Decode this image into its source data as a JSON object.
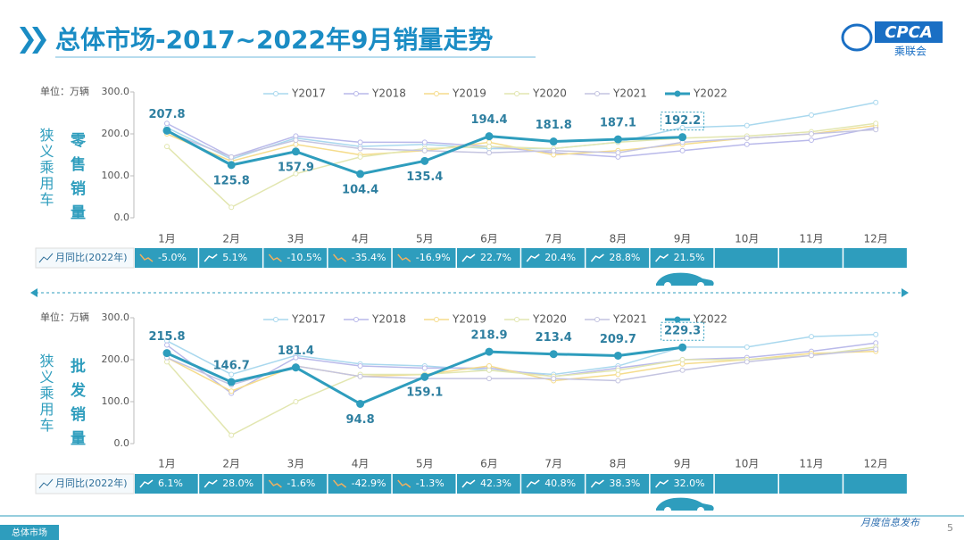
{
  "header": {
    "title": "总体市场-2017~2022年9月销量走势",
    "logo": "CPCA",
    "logo_sub": "乘联会"
  },
  "footer": {
    "tabs": [
      "总体市场"
    ],
    "note": "月度信息发布",
    "page": "5"
  },
  "chart_data": [
    {
      "type": "line",
      "y_label": "单位：万辆",
      "side_label": "狭义乘用车",
      "metric_label": "零售销量",
      "categories": [
        "1月",
        "2月",
        "3月",
        "4月",
        "5月",
        "6月",
        "7月",
        "8月",
        "9月",
        "10月",
        "11月",
        "12月"
      ],
      "ylim": [
        0,
        300
      ],
      "yticks": [
        {
          "value": 0,
          "label": "0.0"
        },
        {
          "value": 100,
          "label": "100.0"
        },
        {
          "value": 200,
          "label": "200.0"
        },
        {
          "value": 300,
          "label": "300.0"
        }
      ],
      "series": [
        {
          "name": "Y2017",
          "color": "#a9d8ee",
          "values": [
            215,
            140,
            190,
            170,
            175,
            165,
            165,
            180,
            215,
            220,
            245,
            275
          ]
        },
        {
          "name": "Y2018",
          "color": "#b9b9ea",
          "values": [
            225,
            145,
            195,
            180,
            180,
            170,
            155,
            145,
            160,
            175,
            185,
            215
          ]
        },
        {
          "name": "Y2019",
          "color": "#f5dc8c",
          "values": [
            200,
            135,
            175,
            150,
            160,
            180,
            150,
            160,
            175,
            190,
            200,
            220
          ]
        },
        {
          "name": "Y2020",
          "color": "#e2e6b0",
          "values": [
            170,
            25,
            105,
            145,
            165,
            170,
            165,
            180,
            190,
            195,
            205,
            225
          ]
        },
        {
          "name": "Y2021",
          "color": "#c4c4e0",
          "values": [
            205,
            145,
            185,
            165,
            160,
            155,
            160,
            155,
            180,
            190,
            200,
            210
          ]
        },
        {
          "name": "Y2022",
          "color": "#2e9dbd",
          "values": [
            207.8,
            125.8,
            157.9,
            104.4,
            135.4,
            194.4,
            181.8,
            187.1,
            192.2,
            null,
            null,
            null
          ]
        }
      ],
      "yoy": {
        "label": "月同比(2022年)",
        "values": [
          "-5.0%",
          "5.1%",
          "-10.5%",
          "-35.4%",
          "-16.9%",
          "22.7%",
          "20.4%",
          "28.8%",
          "21.5%"
        ]
      }
    },
    {
      "type": "line",
      "y_label": "单位：万辆",
      "side_label": "狭义乘用车",
      "metric_label": "批发销量",
      "categories": [
        "1月",
        "2月",
        "3月",
        "4月",
        "5月",
        "6月",
        "7月",
        "8月",
        "9月",
        "10月",
        "11月",
        "12月"
      ],
      "ylim": [
        0,
        300
      ],
      "yticks": [
        {
          "value": 0,
          "label": "0.0"
        },
        {
          "value": 100,
          "label": "100.0"
        },
        {
          "value": 200,
          "label": "200.0"
        },
        {
          "value": 300,
          "label": "300.0"
        }
      ],
      "series": [
        {
          "name": "Y2017",
          "color": "#a9d8ee",
          "values": [
            245,
            165,
            210,
            190,
            185,
            175,
            165,
            185,
            230,
            230,
            255,
            260
          ]
        },
        {
          "name": "Y2018",
          "color": "#b9b9ea",
          "values": [
            235,
            120,
            205,
            185,
            180,
            180,
            160,
            180,
            200,
            205,
            220,
            240
          ]
        },
        {
          "name": "Y2019",
          "color": "#f5dc8c",
          "values": [
            205,
            125,
            185,
            160,
            165,
            185,
            150,
            165,
            190,
            200,
            215,
            220
          ]
        },
        {
          "name": "Y2020",
          "color": "#e2e6b0",
          "values": [
            195,
            20,
            100,
            165,
            165,
            175,
            160,
            175,
            200,
            200,
            210,
            230
          ]
        },
        {
          "name": "Y2021",
          "color": "#c4c4e0",
          "values": [
            205,
            140,
            185,
            160,
            155,
            155,
            155,
            150,
            175,
            195,
            210,
            225
          ]
        },
        {
          "name": "Y2022",
          "color": "#2e9dbd",
          "values": [
            215.8,
            146.7,
            181.4,
            94.8,
            159.1,
            218.9,
            213.4,
            209.7,
            229.3,
            null,
            null,
            null
          ]
        }
      ],
      "yoy": {
        "label": "月同比(2022年)",
        "values": [
          "6.1%",
          "28.0%",
          "-1.6%",
          "-42.9%",
          "-1.3%",
          "42.3%",
          "40.8%",
          "38.3%",
          "32.0%"
        ]
      }
    }
  ]
}
